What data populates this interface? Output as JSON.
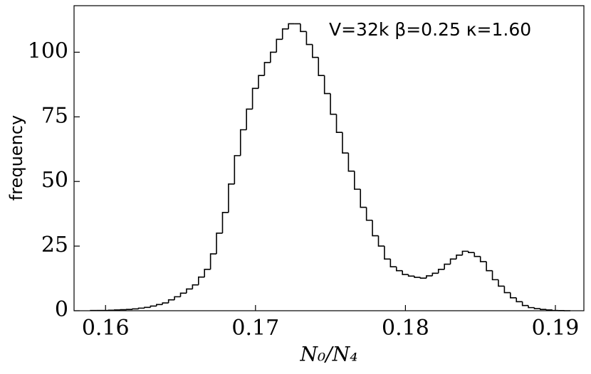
{
  "chart_data": {
    "type": "histogram",
    "annotation": "V=32k β=0.25 κ=1.60",
    "xlabel": "N₀/N₄",
    "ylabel": "frequency",
    "bins": [
      0.159,
      0.1594,
      0.1598,
      0.1602,
      0.1606,
      0.161,
      0.1614,
      0.1618,
      0.1622,
      0.1626,
      0.163,
      0.1634,
      0.1638,
      0.1642,
      0.1646,
      0.165,
      0.1654,
      0.1658,
      0.1662,
      0.1666,
      0.167,
      0.1674,
      0.1678,
      0.1682,
      0.1686,
      0.169,
      0.1694,
      0.1698,
      0.1702,
      0.1706,
      0.171,
      0.1714,
      0.1718,
      0.1722,
      0.1726,
      0.173,
      0.1734,
      0.1738,
      0.1742,
      0.1746,
      0.175,
      0.1754,
      0.1758,
      0.1762,
      0.1766,
      0.177,
      0.1774,
      0.1778,
      0.1782,
      0.1786,
      0.179,
      0.1794,
      0.1798,
      0.1802,
      0.1806,
      0.181,
      0.1814,
      0.1818,
      0.1822,
      0.1826,
      0.183,
      0.1834,
      0.1838,
      0.1842,
      0.1846,
      0.185,
      0.1854,
      0.1858,
      0.1862,
      0.1866,
      0.187,
      0.1874,
      0.1878,
      0.1882,
      0.1886,
      0.189,
      0.1894,
      0.1898,
      0.1902,
      0.1906,
      0.191
    ],
    "values": [
      0.1,
      0.1,
      0.1,
      0.2,
      0.3,
      0.4,
      0.5,
      0.7,
      1.0,
      1.3,
      1.8,
      2.4,
      3,
      4.2,
      5.4,
      6.8,
      8.4,
      10,
      13,
      16,
      22,
      30,
      38,
      49,
      60,
      70,
      78,
      86,
      91,
      96,
      100,
      105,
      109,
      111,
      111,
      108,
      103,
      98,
      91,
      84,
      76,
      69,
      61,
      54,
      47,
      40,
      35,
      29,
      25,
      20,
      17,
      15.5,
      14,
      13.4,
      12.9,
      12.6,
      13.5,
      14.5,
      16,
      18,
      20,
      21.5,
      23,
      22.5,
      21,
      19,
      15.5,
      12,
      9.5,
      7,
      5,
      3.5,
      2,
      1.2,
      0.8,
      0.5,
      0.3,
      0.1,
      0.05,
      0
    ],
    "color": "#000000",
    "xlim": [
      0.1579,
      0.1919
    ],
    "ylim": [
      0,
      118
    ],
    "xticks": [
      0.16,
      0.17,
      0.18,
      0.19
    ],
    "yticks": [
      0,
      25,
      50,
      75,
      100
    ]
  }
}
